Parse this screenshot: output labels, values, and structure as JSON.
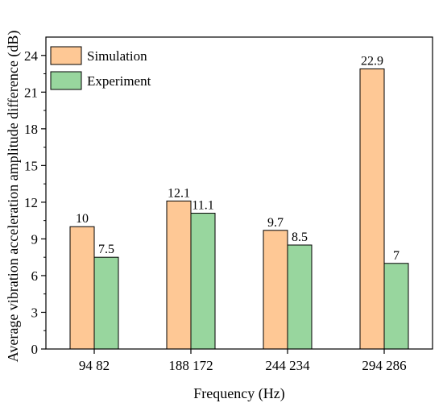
{
  "chart_data": {
    "type": "bar",
    "xlabel": "Frequency (Hz)",
    "ylabel": "Average vibration acceleration amplitude difference (dB)",
    "categories": [
      "94 82",
      "188 172",
      "244 234",
      "294 286"
    ],
    "series": [
      {
        "name": "Simulation",
        "values": [
          10,
          12.1,
          9.7,
          22.9
        ],
        "labels": [
          "10",
          "12.1",
          "9.7",
          "22.9"
        ],
        "color": "#FEC895"
      },
      {
        "name": "Experiment",
        "values": [
          7.5,
          11.1,
          8.5,
          7
        ],
        "labels": [
          "7.5",
          "11.1",
          "8.5",
          "7"
        ],
        "color": "#98D69E"
      }
    ],
    "ylim": [
      0,
      25.5
    ],
    "yticks": [
      0,
      3,
      6,
      9,
      12,
      15,
      18,
      21,
      24
    ],
    "legend_position": "top-left",
    "grid": false
  }
}
